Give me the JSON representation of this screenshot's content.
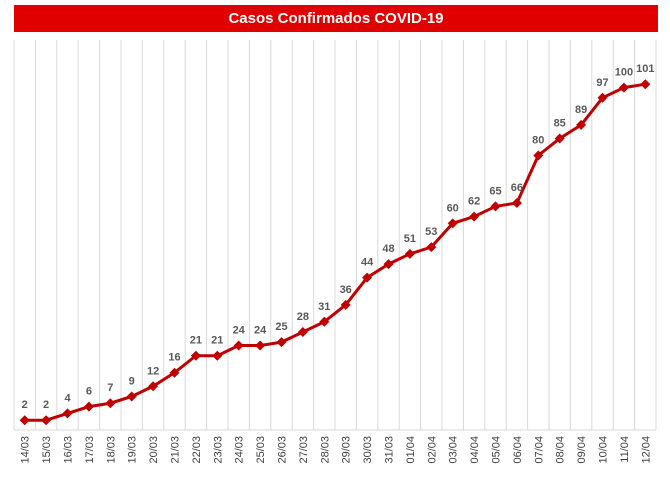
{
  "chart_data": {
    "type": "line",
    "title": "Casos Confirmados COVID-19",
    "categories": [
      "14/03",
      "15/03",
      "16/03",
      "17/03",
      "18/03",
      "19/03",
      "20/03",
      "21/03",
      "22/03",
      "23/03",
      "24/03",
      "25/03",
      "26/03",
      "27/03",
      "28/03",
      "29/03",
      "30/03",
      "31/03",
      "01/04",
      "02/04",
      "03/04",
      "04/04",
      "05/04",
      "06/04",
      "07/04",
      "08/04",
      "09/04",
      "10/04",
      "11/04",
      "12/04"
    ],
    "values": [
      2,
      2,
      4,
      6,
      7,
      9,
      12,
      16,
      21,
      21,
      24,
      24,
      25,
      28,
      31,
      36,
      44,
      48,
      51,
      53,
      60,
      62,
      65,
      66,
      80,
      85,
      89,
      97,
      100,
      101
    ],
    "color": "#c00000",
    "grid": true
  }
}
